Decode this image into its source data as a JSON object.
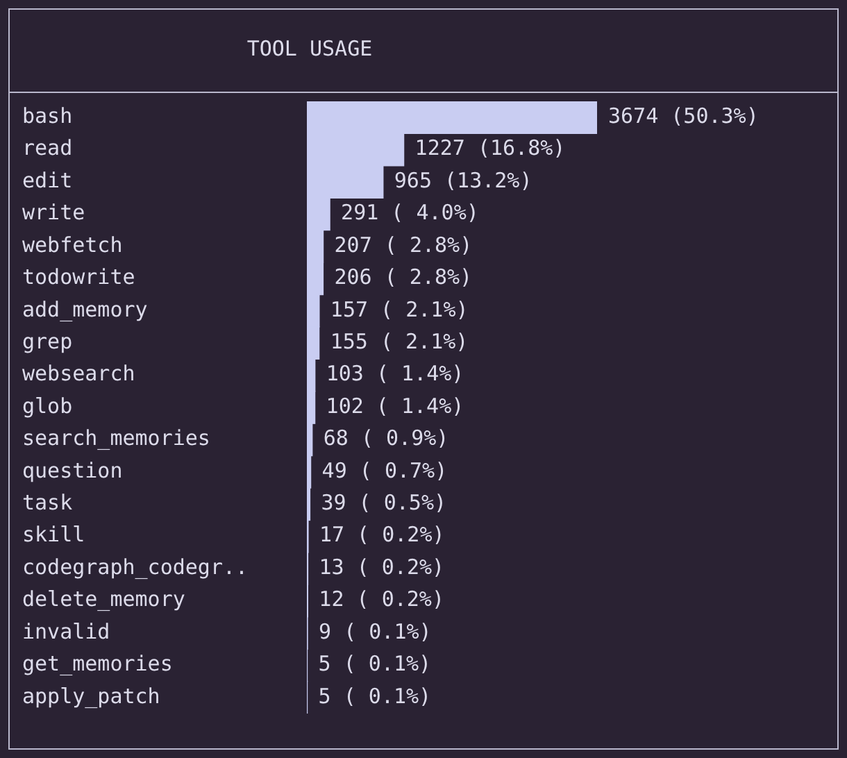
{
  "chart_data": {
    "type": "bar",
    "orientation": "horizontal",
    "title": "TOOL USAGE",
    "categories": [
      "bash",
      "read",
      "edit",
      "write",
      "webfetch",
      "todowrite",
      "add_memory",
      "grep",
      "websearch",
      "glob",
      "search_memories",
      "question",
      "task",
      "skill",
      "codegraph_codegr..",
      "delete_memory",
      "invalid",
      "get_memories",
      "apply_patch"
    ],
    "values": [
      3674,
      1227,
      965,
      291,
      207,
      206,
      157,
      155,
      103,
      102,
      68,
      49,
      39,
      17,
      13,
      12,
      9,
      5,
      5
    ],
    "value_labels": [
      "3674 (50.3%)",
      "1227 (16.8%)",
      "965 (13.2%)",
      "291 ( 4.0%)",
      "207 ( 2.8%)",
      "206 ( 2.8%)",
      "157 ( 2.1%)",
      "155 ( 2.1%)",
      "103 ( 1.4%)",
      "102 ( 1.4%)",
      "68 ( 0.9%)",
      "49 ( 0.7%)",
      "39 ( 0.5%)",
      "17 ( 0.2%)",
      "13 ( 0.2%)",
      "12 ( 0.2%)",
      "9 ( 0.1%)",
      "5 ( 0.1%)",
      "5 ( 0.1%)"
    ],
    "color": "#c9cdf2",
    "xlim": [
      0,
      3674
    ],
    "tick_labels": "y",
    "grid": false,
    "legend": false
  }
}
